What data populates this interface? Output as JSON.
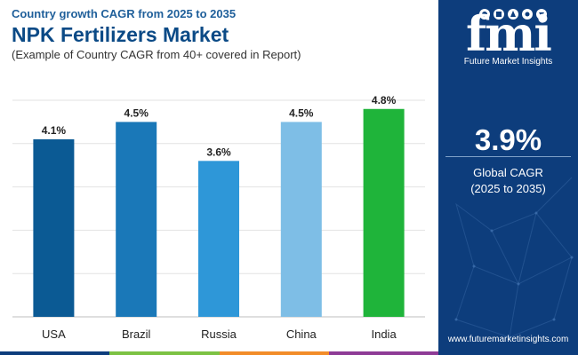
{
  "header": {
    "eyebrow": "Country growth CAGR from 2025 to 2035",
    "title": "NPK Fertilizers Market",
    "subtitle": "(Example of Country CAGR from 40+ covered in Report)"
  },
  "chart_data": {
    "type": "bar",
    "title": "NPK Fertilizers Market",
    "categories": [
      "USA",
      "Brazil",
      "Russia",
      "China",
      "India"
    ],
    "values": [
      4.1,
      4.5,
      3.6,
      4.5,
      4.8
    ],
    "value_labels": [
      "4.1%",
      "4.5%",
      "3.6%",
      "4.5%",
      "4.8%"
    ],
    "bar_colors": [
      "#0b5a94",
      "#1a78b8",
      "#2e97d8",
      "#7ebee6",
      "#1fb43a"
    ],
    "ylim": [
      0,
      5
    ],
    "grid": true,
    "legend": "none"
  },
  "sidebar": {
    "logo_text": "fmi",
    "logo_subtitle": "Future Market Insights",
    "kpi_value": "3.9%",
    "kpi_label": "Global CAGR",
    "kpi_period": "(2025 to 2035)",
    "website": "www.futuremarketinsights.com"
  },
  "colors": {
    "sidebar_bg": "#0d3d7c",
    "title": "#0b4a86",
    "band": [
      "#0d3d7c",
      "#7cc243",
      "#f28c28",
      "#8e3b96"
    ]
  }
}
